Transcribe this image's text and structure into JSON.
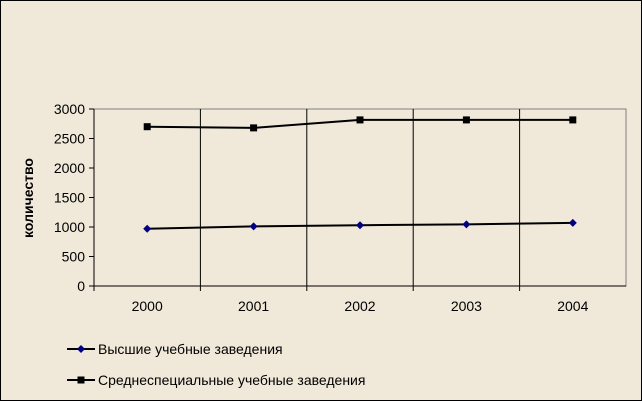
{
  "chart_data": {
    "type": "line",
    "categories": [
      "2000",
      "2001",
      "2002",
      "2003",
      "2004"
    ],
    "ylabel": "количество",
    "ylim": [
      0,
      3000
    ],
    "yticks": [
      0,
      500,
      1000,
      1500,
      2000,
      2500,
      3000
    ],
    "grid": "vertical",
    "legend_position": "bottom-left",
    "series": [
      {
        "name": "Высшие учебные заведения",
        "values": [
          970,
          1010,
          1030,
          1045,
          1070
        ],
        "color": "#000080",
        "marker": "diamond"
      },
      {
        "name": "Среднеспециальные учебные заведения",
        "values": [
          2700,
          2680,
          2815,
          2815,
          2815
        ],
        "color": "#000000",
        "marker": "square"
      }
    ]
  }
}
